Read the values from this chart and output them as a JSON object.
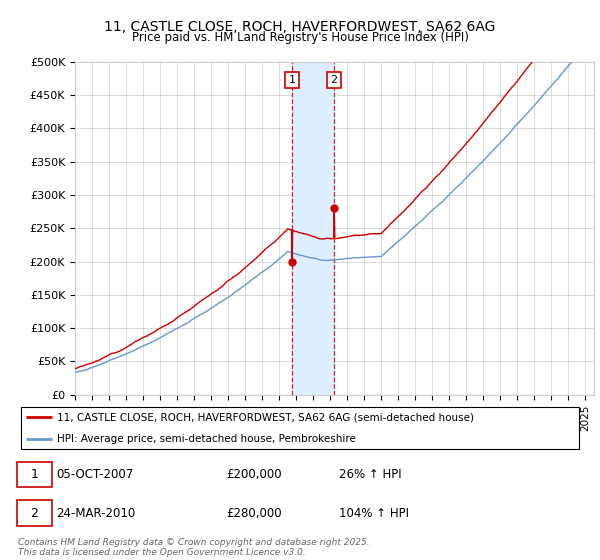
{
  "title": "11, CASTLE CLOSE, ROCH, HAVERFORDWEST, SA62 6AG",
  "subtitle": "Price paid vs. HM Land Registry's House Price Index (HPI)",
  "ylabel_ticks": [
    "£0",
    "£50K",
    "£100K",
    "£150K",
    "£200K",
    "£250K",
    "£300K",
    "£350K",
    "£400K",
    "£450K",
    "£500K"
  ],
  "ylim": [
    0,
    500000
  ],
  "xlim_start": 1995.0,
  "xlim_end": 2025.5,
  "sale1_date": 2007.75,
  "sale2_date": 2010.22,
  "sale1_price": 200000,
  "sale2_price": 280000,
  "legend_house": "11, CASTLE CLOSE, ROCH, HAVERFORDWEST, SA62 6AG (semi-detached house)",
  "legend_hpi": "HPI: Average price, semi-detached house, Pembrokeshire",
  "table_row1": [
    "1",
    "05-OCT-2007",
    "£200,000",
    "26% ↑ HPI"
  ],
  "table_row2": [
    "2",
    "24-MAR-2010",
    "£280,000",
    "104% ↑ HPI"
  ],
  "footer": "Contains HM Land Registry data © Crown copyright and database right 2025.\nThis data is licensed under the Open Government Licence v3.0.",
  "house_color": "#cc0000",
  "hpi_color": "#6699cc",
  "shade_color": "#ddeeff",
  "grid_color": "#cccccc",
  "background_color": "#ffffff"
}
